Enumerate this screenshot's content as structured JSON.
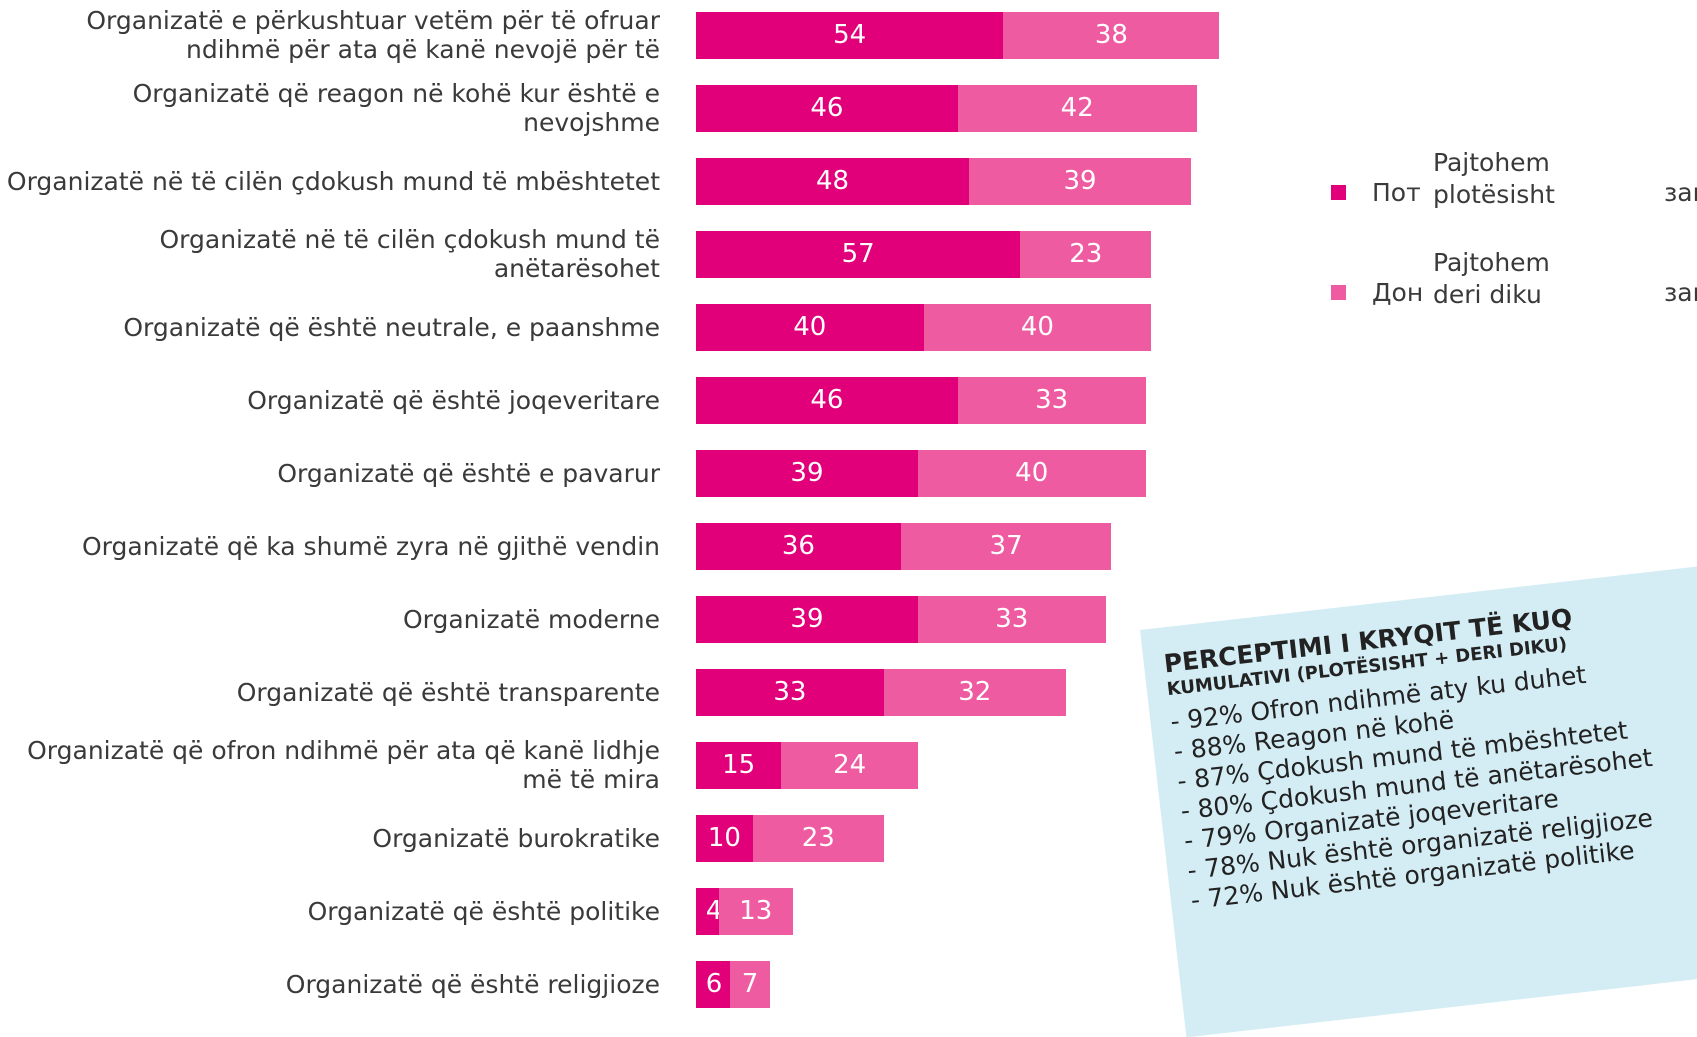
{
  "chart_data": {
    "type": "stacked-barh",
    "categories": [
      "Organizatë e përkushtuar vetëm për të ofruar ndihmë për ata që kanë nevojë për të",
      "Organizatë që reagon në kohë kur është e nevojshme",
      "Organizatë në të cilën çdokush mund të mbështetet",
      "Organizatë në të cilën çdokush mund të anëtarësohet",
      "Organizatë që është neutrale, e paanshme",
      "Organizatë që është joqeveritare",
      "Organizatë që është e pavarur",
      "Organizatë që ka shumë zyra në gjithë vendin",
      "Organizatë moderne",
      "Organizatë që është transparente",
      "Organizatë që ofron ndihmë për ata që kanë lidhje më të mira",
      "Organizatë burokratike",
      "Organizatë që është politike",
      "Organizatë që është religjioze"
    ],
    "series": [
      {
        "name": "Pajtohem plotësisht",
        "color": "#e2007a",
        "values": [
          54,
          46,
          48,
          57,
          40,
          46,
          39,
          36,
          39,
          33,
          15,
          10,
          4,
          6
        ]
      },
      {
        "name": "Pajtohem deri diku",
        "color": "#ef5ba1",
        "values": [
          38,
          42,
          39,
          23,
          40,
          33,
          40,
          37,
          33,
          32,
          24,
          23,
          13,
          7
        ]
      }
    ],
    "legend_fragments": [
      "Пот",
      "зам",
      "Дон",
      "зам"
    ],
    "callout": {
      "title": "PERCEPTIMI I KRYQIT TË KUQ",
      "subtitle": "KUMULATIVI (PLOTËSISHT + DERI DIKU)",
      "lines": [
        "- 92% Ofron ndihmë aty ku duhet",
        "- 88% Reagon në kohë",
        "- 87% Çdokush mund të mbështetet",
        "- 80% Çdokush mund të anëtarësohet",
        "- 79%  Organizatë joqeveritare",
        "- 78%  Nuk është organizatë religjioze",
        "- 72%  Nuk është organizatë politike"
      ]
    }
  }
}
